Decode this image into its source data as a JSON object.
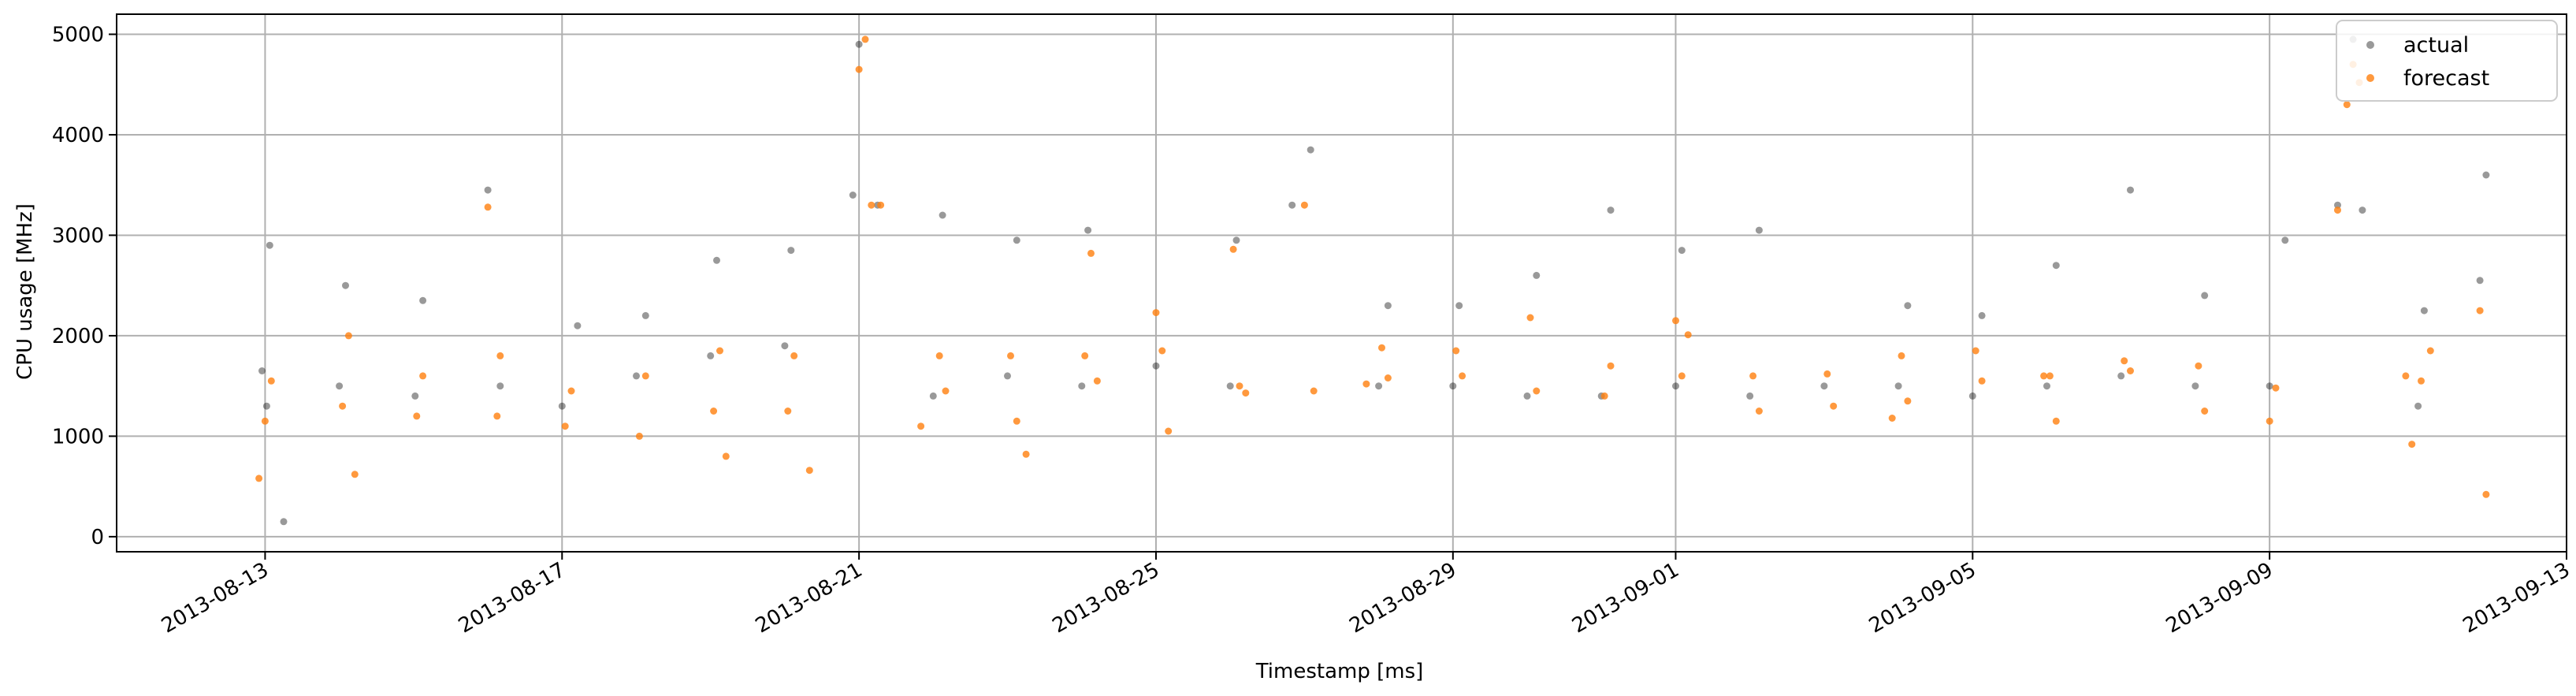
{
  "chart_data": {
    "type": "scatter",
    "xlabel": "Timestamp [ms]",
    "ylabel": "CPU usage [MHz]",
    "x_range": [
      "2013-08-11T00:00",
      "2013-09-13T00:00"
    ],
    "ylim": [
      -150,
      5200
    ],
    "grid": true,
    "legend_position": "top-right",
    "x_ticks": [
      "2013-08-13",
      "2013-08-17",
      "2013-08-21",
      "2013-08-25",
      "2013-08-29",
      "2013-09-01",
      "2013-09-05",
      "2013-09-09",
      "2013-09-13"
    ],
    "y_ticks": [
      0,
      1000,
      2000,
      3000,
      4000,
      5000
    ],
    "series": [
      {
        "name": "actual",
        "color": "#000000",
        "marker": "circle",
        "opacity": 0.4
      },
      {
        "name": "forecast",
        "color": "#ff7f0e",
        "marker": "circle",
        "opacity": 0.8
      }
    ],
    "start_date": "2013-08-11",
    "actual_points": [
      [
        "2013-08-12T23:00",
        1650
      ],
      [
        "2013-08-13T00:30",
        1300
      ],
      [
        "2013-08-13T01:30",
        2900
      ],
      [
        "2013-08-13T06:00",
        150
      ],
      [
        "2013-08-14T00:00",
        1500
      ],
      [
        "2013-08-14T02:00",
        2500
      ],
      [
        "2013-08-15T00:30",
        1400
      ],
      [
        "2013-08-15T03:00",
        2350
      ],
      [
        "2013-08-16T00:00",
        3450
      ],
      [
        "2013-08-16T04:00",
        1500
      ],
      [
        "2013-08-17T00:00",
        1300
      ],
      [
        "2013-08-17T05:00",
        2100
      ],
      [
        "2013-08-18T00:00",
        1600
      ],
      [
        "2013-08-18T03:00",
        2200
      ],
      [
        "2013-08-19T00:00",
        1800
      ],
      [
        "2013-08-19T02:00",
        2750
      ],
      [
        "2013-08-20T00:00",
        1900
      ],
      [
        "2013-08-20T02:00",
        2850
      ],
      [
        "2013-08-20T22:00",
        3400
      ],
      [
        "2013-08-21T00:00",
        4900
      ],
      [
        "2013-08-21T06:00",
        3300
      ],
      [
        "2013-08-22T00:00",
        1400
      ],
      [
        "2013-08-22T03:00",
        3200
      ],
      [
        "2013-08-23T00:00",
        1600
      ],
      [
        "2013-08-23T03:00",
        2950
      ],
      [
        "2013-08-24T00:00",
        1500
      ],
      [
        "2013-08-24T02:00",
        3050
      ],
      [
        "2013-08-25T00:00",
        1700
      ],
      [
        "2013-08-26T00:00",
        1500
      ],
      [
        "2013-08-26T02:00",
        2950
      ],
      [
        "2013-08-26T20:00",
        3300
      ],
      [
        "2013-08-27T02:00",
        3850
      ],
      [
        "2013-08-28T00:00",
        1500
      ],
      [
        "2013-08-28T03:00",
        2300
      ],
      [
        "2013-08-29T00:00",
        1500
      ],
      [
        "2013-08-29T02:00",
        2300
      ],
      [
        "2013-08-30T00:00",
        1400
      ],
      [
        "2013-08-30T03:00",
        2600
      ],
      [
        "2013-08-31T00:00",
        1400
      ],
      [
        "2013-08-31T03:00",
        3250
      ],
      [
        "2013-09-01T00:00",
        1500
      ],
      [
        "2013-09-01T02:00",
        2850
      ],
      [
        "2013-09-02T00:00",
        1400
      ],
      [
        "2013-09-02T03:00",
        3050
      ],
      [
        "2013-09-03T00:00",
        1500
      ],
      [
        "2013-09-04T00:00",
        1500
      ],
      [
        "2013-09-04T03:00",
        2300
      ],
      [
        "2013-09-05T00:00",
        1400
      ],
      [
        "2013-09-05T03:00",
        2200
      ],
      [
        "2013-09-06T00:00",
        1500
      ],
      [
        "2013-09-06T03:00",
        2700
      ],
      [
        "2013-09-07T00:00",
        1600
      ],
      [
        "2013-09-07T03:00",
        3450
      ],
      [
        "2013-09-08T00:00",
        1500
      ],
      [
        "2013-09-08T03:00",
        2400
      ],
      [
        "2013-09-09T00:00",
        1500
      ],
      [
        "2013-09-09T05:00",
        2950
      ],
      [
        "2013-09-09T22:00",
        3300
      ],
      [
        "2013-09-10T03:00",
        4950
      ],
      [
        "2013-09-10T06:00",
        3250
      ],
      [
        "2013-09-11T00:00",
        1300
      ],
      [
        "2013-09-11T02:00",
        2250
      ],
      [
        "2013-09-11T20:00",
        2550
      ],
      [
        "2013-09-11T22:00",
        3600
      ]
    ],
    "forecast_points": [
      [
        "2013-08-12T22:00",
        580
      ],
      [
        "2013-08-13T00:00",
        1150
      ],
      [
        "2013-08-13T02:00",
        1550
      ],
      [
        "2013-08-14T01:00",
        1300
      ],
      [
        "2013-08-14T03:00",
        2000
      ],
      [
        "2013-08-14T05:00",
        620
      ],
      [
        "2013-08-15T01:00",
        1200
      ],
      [
        "2013-08-15T03:00",
        1600
      ],
      [
        "2013-08-16T00:00",
        3280
      ],
      [
        "2013-08-16T04:00",
        1800
      ],
      [
        "2013-08-16T03:00",
        1200
      ],
      [
        "2013-08-17T01:00",
        1100
      ],
      [
        "2013-08-17T03:00",
        1450
      ],
      [
        "2013-08-18T01:00",
        1000
      ],
      [
        "2013-08-18T03:00",
        1600
      ],
      [
        "2013-08-19T01:00",
        1250
      ],
      [
        "2013-08-19T03:00",
        1850
      ],
      [
        "2013-08-19T05:00",
        800
      ],
      [
        "2013-08-20T01:00",
        1250
      ],
      [
        "2013-08-20T03:00",
        1800
      ],
      [
        "2013-08-20T08:00",
        660
      ],
      [
        "2013-08-21T00:00",
        4650
      ],
      [
        "2013-08-21T02:00",
        4950
      ],
      [
        "2013-08-21T04:00",
        3300
      ],
      [
        "2013-08-21T07:00",
        3300
      ],
      [
        "2013-08-21T20:00",
        1100
      ],
      [
        "2013-08-22T02:00",
        1800
      ],
      [
        "2013-08-22T04:00",
        1450
      ],
      [
        "2013-08-23T01:00",
        1800
      ],
      [
        "2013-08-23T03:00",
        1150
      ],
      [
        "2013-08-23T06:00",
        820
      ],
      [
        "2013-08-24T01:00",
        1800
      ],
      [
        "2013-08-24T03:00",
        2820
      ],
      [
        "2013-08-24T05:00",
        1550
      ],
      [
        "2013-08-25T00:00",
        2230
      ],
      [
        "2013-08-25T02:00",
        1850
      ],
      [
        "2013-08-25T04:00",
        1050
      ],
      [
        "2013-08-26T01:00",
        2860
      ],
      [
        "2013-08-26T03:00",
        1500
      ],
      [
        "2013-08-26T05:00",
        1430
      ],
      [
        "2013-08-27T00:00",
        3300
      ],
      [
        "2013-08-27T03:00",
        1450
      ],
      [
        "2013-08-27T20:00",
        1520
      ],
      [
        "2013-08-28T01:00",
        1880
      ],
      [
        "2013-08-28T03:00",
        1580
      ],
      [
        "2013-08-29T01:00",
        1850
      ],
      [
        "2013-08-29T03:00",
        1600
      ],
      [
        "2013-08-30T01:00",
        2180
      ],
      [
        "2013-08-30T03:00",
        1450
      ],
      [
        "2013-08-31T01:00",
        1400
      ],
      [
        "2013-08-31T03:00",
        1700
      ],
      [
        "2013-09-01T00:00",
        2150
      ],
      [
        "2013-09-01T02:00",
        1600
      ],
      [
        "2013-09-01T04:00",
        2010
      ],
      [
        "2013-09-02T01:00",
        1600
      ],
      [
        "2013-09-02T03:00",
        1250
      ],
      [
        "2013-09-03T01:00",
        1620
      ],
      [
        "2013-09-03T03:00",
        1300
      ],
      [
        "2013-09-03T22:00",
        1180
      ],
      [
        "2013-09-04T01:00",
        1800
      ],
      [
        "2013-09-04T03:00",
        1350
      ],
      [
        "2013-09-05T01:00",
        1850
      ],
      [
        "2013-09-05T03:00",
        1550
      ],
      [
        "2013-09-05T23:00",
        1600
      ],
      [
        "2013-09-06T01:00",
        1600
      ],
      [
        "2013-09-06T03:00",
        1150
      ],
      [
        "2013-09-07T01:00",
        1750
      ],
      [
        "2013-09-07T03:00",
        1650
      ],
      [
        "2013-09-08T01:00",
        1700
      ],
      [
        "2013-09-08T03:00",
        1250
      ],
      [
        "2013-09-09T00:00",
        1150
      ],
      [
        "2013-09-09T02:00",
        1480
      ],
      [
        "2013-09-09T22:00",
        3250
      ],
      [
        "2013-09-10T01:00",
        4300
      ],
      [
        "2013-09-10T03:00",
        4700
      ],
      [
        "2013-09-10T05:00",
        4520
      ],
      [
        "2013-09-10T20:00",
        1600
      ],
      [
        "2013-09-10T22:00",
        920
      ],
      [
        "2013-09-11T01:00",
        1550
      ],
      [
        "2013-09-11T04:00",
        1850
      ],
      [
        "2013-09-11T20:00",
        2250
      ],
      [
        "2013-09-11T22:00",
        420
      ]
    ]
  }
}
